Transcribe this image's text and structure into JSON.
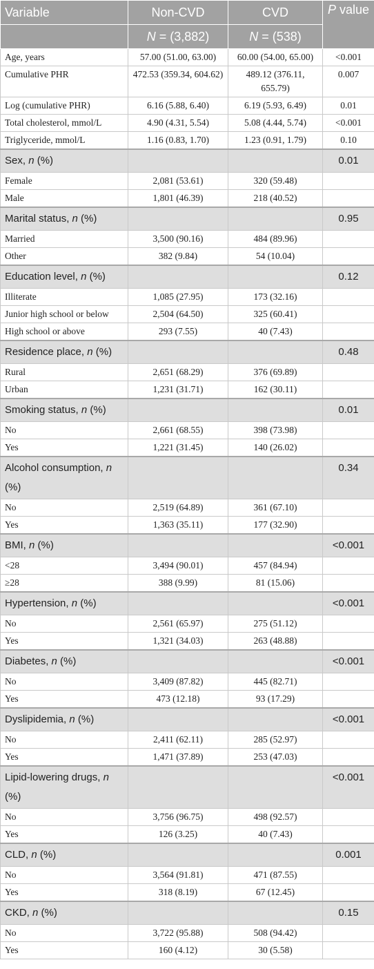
{
  "table": {
    "header": {
      "columns": [
        "Variable",
        "Non-CVD",
        "CVD",
        "P value"
      ],
      "n_row": [
        "N = (3,882)",
        "N = (538)"
      ]
    },
    "continuous": [
      [
        "Age, years",
        "57.00 (51.00, 63.00)",
        "60.00 (54.00, 65.00)",
        "<0.001"
      ],
      [
        "Cumulative PHR",
        "472.53 (359.34, 604.62)",
        "489.12 (376.11, 655.79)",
        "0.007"
      ],
      [
        "Log (cumulative PHR)",
        "6.16 (5.88, 6.40)",
        "6.19 (5.93, 6.49)",
        "0.01"
      ],
      [
        "Total cholesterol, mmol/L",
        "4.90 (4.31, 5.54)",
        "5.08 (4.44, 5.74)",
        "<0.001"
      ],
      [
        "Triglyceride, mmol/L",
        "1.16 (0.83, 1.70)",
        "1.23 (0.91, 1.79)",
        "0.10"
      ]
    ],
    "groups": [
      {
        "variable": "Sex, n (%)",
        "p_value": "0.01",
        "levels": [
          [
            "Female",
            "2,081 (53.61)",
            "320 (59.48)"
          ],
          [
            "Male",
            "1,801 (46.39)",
            "218 (40.52)"
          ]
        ]
      },
      {
        "variable": "Marital status, n (%)",
        "p_value": "0.95",
        "levels": [
          [
            "Married",
            "3,500 (90.16)",
            "484 (89.96)"
          ],
          [
            "Other",
            "382 (9.84)",
            "54 (10.04)"
          ]
        ]
      },
      {
        "variable": "Education level, n (%)",
        "p_value": "0.12",
        "levels": [
          [
            "Illiterate",
            "1,085 (27.95)",
            "173 (32.16)"
          ],
          [
            "Junior high school or below",
            "2,504 (64.50)",
            "325 (60.41)"
          ],
          [
            "High school or above",
            "293 (7.55)",
            "40 (7.43)"
          ]
        ]
      },
      {
        "variable": "Residence place, n (%)",
        "p_value": "0.48",
        "levels": [
          [
            "Rural",
            "2,651 (68.29)",
            "376 (69.89)"
          ],
          [
            "Urban",
            "1,231 (31.71)",
            "162 (30.11)"
          ]
        ]
      },
      {
        "variable": "Smoking status, n (%)",
        "p_value": "0.01",
        "levels": [
          [
            "No",
            "2,661 (68.55)",
            "398 (73.98)"
          ],
          [
            "Yes",
            "1,221 (31.45)",
            "140 (26.02)"
          ]
        ]
      },
      {
        "variable": "Alcohol consumption, n (%)",
        "p_value": "0.34",
        "levels": [
          [
            "No",
            "2,519 (64.89)",
            "361 (67.10)"
          ],
          [
            "Yes",
            "1,363 (35.11)",
            "177 (32.90)"
          ]
        ]
      },
      {
        "variable": "BMI, n (%)",
        "p_value": "<0.001",
        "levels": [
          [
            "<28",
            "3,494 (90.01)",
            "457 (84.94)"
          ],
          [
            "≥28",
            "388 (9.99)",
            "81 (15.06)"
          ]
        ]
      },
      {
        "variable": "Hypertension, n (%)",
        "p_value": "<0.001",
        "levels": [
          [
            "No",
            "2,561 (65.97)",
            "275 (51.12)"
          ],
          [
            "Yes",
            "1,321 (34.03)",
            "263 (48.88)"
          ]
        ]
      },
      {
        "variable": "Diabetes, n (%)",
        "p_value": "<0.001",
        "levels": [
          [
            "No",
            "3,409 (87.82)",
            "445 (82.71)"
          ],
          [
            "Yes",
            "473 (12.18)",
            "93 (17.29)"
          ]
        ]
      },
      {
        "variable": "Dyslipidemia, n (%)",
        "p_value": "<0.001",
        "levels": [
          [
            "No",
            "2,411 (62.11)",
            "285 (52.97)"
          ],
          [
            "Yes",
            "1,471 (37.89)",
            "253 (47.03)"
          ]
        ]
      },
      {
        "variable": "Lipid-lowering drugs, n (%)",
        "p_value": "<0.001",
        "levels": [
          [
            "No",
            "3,756 (96.75)",
            "498 (92.57)"
          ],
          [
            "Yes",
            "126 (3.25)",
            "40 (7.43)"
          ]
        ]
      },
      {
        "variable": "CLD, n (%)",
        "p_value": "0.001",
        "levels": [
          [
            "No",
            "3,564 (91.81)",
            "471 (87.55)"
          ],
          [
            "Yes",
            "318 (8.19)",
            "67 (12.45)"
          ]
        ]
      },
      {
        "variable": "CKD, n (%)",
        "p_value": "0.15",
        "levels": [
          [
            "No",
            "3,722 (95.88)",
            "508 (94.42)"
          ],
          [
            "Yes",
            "160 (4.12)",
            "30 (5.58)"
          ]
        ]
      }
    ]
  }
}
